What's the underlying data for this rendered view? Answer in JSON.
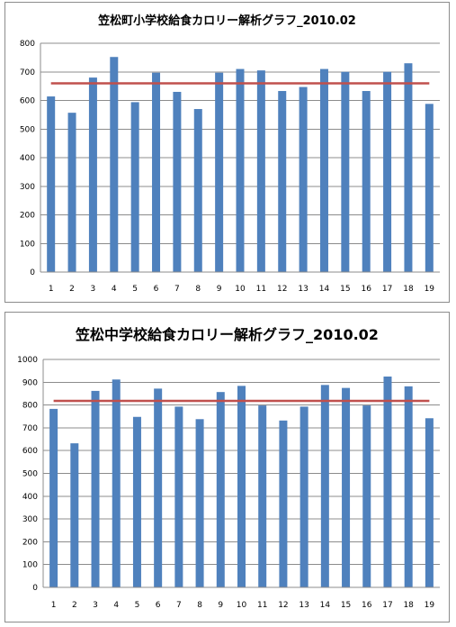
{
  "chart_data": [
    {
      "type": "bar",
      "title": "笠松町小学校給食カロリー解析グラフ_2010.02",
      "categories": [
        "1",
        "2",
        "3",
        "4",
        "5",
        "6",
        "7",
        "8",
        "9",
        "10",
        "11",
        "12",
        "13",
        "14",
        "15",
        "16",
        "17",
        "18",
        "19"
      ],
      "series": [
        {
          "values": [
            614,
            557,
            680,
            752,
            594,
            697,
            630,
            570,
            697,
            710,
            705,
            633,
            647,
            710,
            700,
            633,
            700,
            730,
            588
          ],
          "color": "#4f81bd"
        }
      ],
      "reference_line": {
        "value": 660,
        "color": "#c0504d"
      },
      "ylim": [
        0,
        800
      ],
      "yticks": [
        0,
        100,
        200,
        300,
        400,
        500,
        600,
        700,
        800
      ],
      "grid": true,
      "xlabel": "",
      "ylabel": ""
    },
    {
      "type": "bar",
      "title": "笠松中学校給食カロリー解析グラフ_2010.02",
      "categories": [
        "1",
        "2",
        "3",
        "4",
        "5",
        "6",
        "7",
        "8",
        "9",
        "10",
        "11",
        "12",
        "13",
        "14",
        "15",
        "16",
        "17",
        "18",
        "19"
      ],
      "series": [
        {
          "values": [
            783,
            632,
            862,
            912,
            748,
            872,
            793,
            738,
            857,
            884,
            798,
            732,
            793,
            888,
            875,
            798,
            925,
            882,
            742
          ],
          "color": "#4f81bd"
        }
      ],
      "reference_line": {
        "value": 818,
        "color": "#c0504d"
      },
      "ylim": [
        0,
        1000
      ],
      "yticks": [
        0,
        100,
        200,
        300,
        400,
        500,
        600,
        700,
        800,
        900,
        1000
      ],
      "grid": true,
      "xlabel": "",
      "ylabel": ""
    }
  ]
}
